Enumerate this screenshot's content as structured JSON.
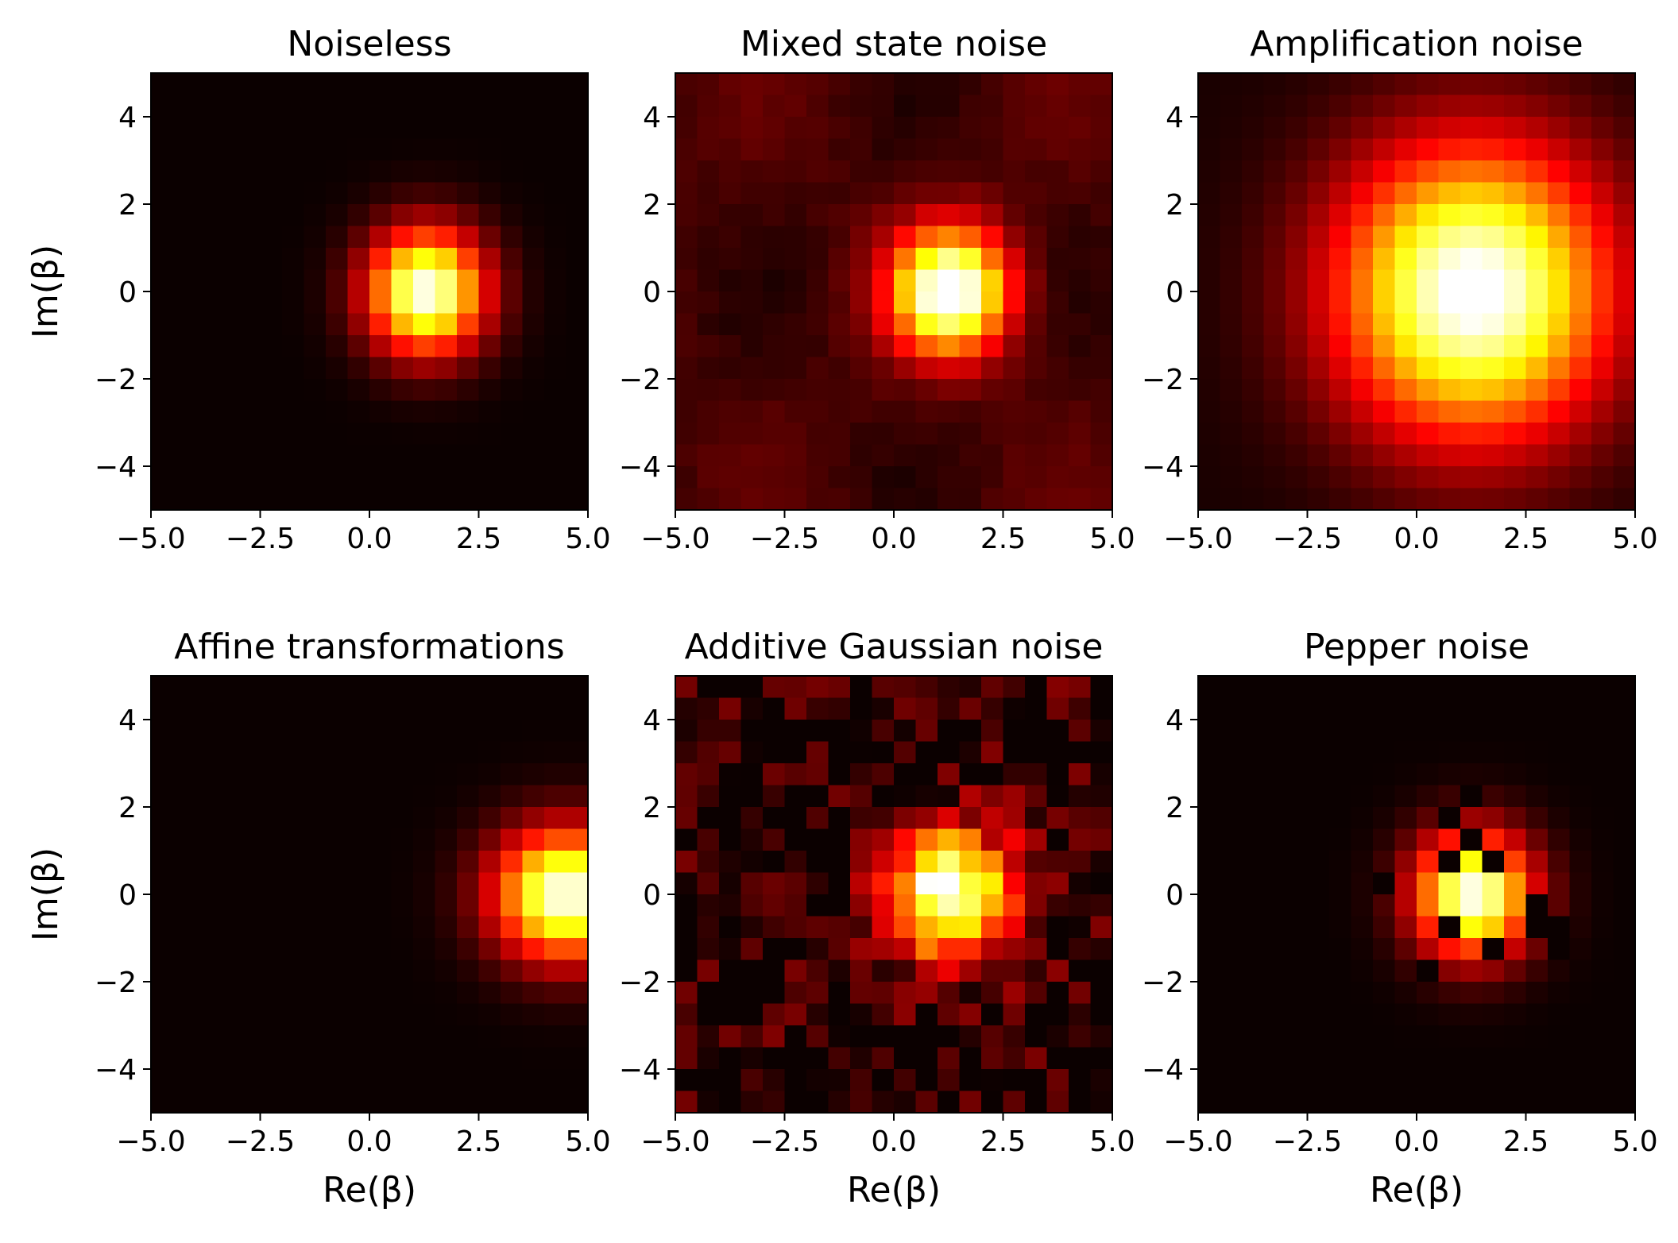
{
  "chart_data": [
    {
      "type": "heatmap",
      "title": "Noiseless",
      "xlabel": "",
      "ylabel": "Im(β)",
      "xlim": [
        -5,
        5
      ],
      "ylim": [
        -5,
        5
      ],
      "xticks": [
        "−5.0",
        "−2.5",
        "0.0",
        "2.5",
        "5.0"
      ],
      "yticks": [
        "−4",
        "−2",
        "0",
        "2",
        "4"
      ],
      "colormap": "hot",
      "grid_size": 20,
      "peak": [
        1.3,
        0
      ],
      "max_value": 1.0,
      "description": "single gaussian peak near (1.3, 0)"
    },
    {
      "type": "heatmap",
      "title": "Mixed state noise",
      "xlabel": "",
      "ylabel": "",
      "xlim": [
        -5,
        5
      ],
      "ylim": [
        -5,
        5
      ],
      "xticks": [
        "−5.0",
        "−2.5",
        "0.0",
        "2.5",
        "5.0"
      ],
      "yticks": [
        "−4",
        "−2",
        "0",
        "2",
        "4"
      ],
      "colormap": "hot",
      "grid_size": 20,
      "peak": [
        1.3,
        0
      ],
      "max_value": 1.0
    },
    {
      "type": "heatmap",
      "title": "Amplification noise",
      "xlabel": "",
      "ylabel": "",
      "xlim": [
        -5,
        5
      ],
      "ylim": [
        -5,
        5
      ],
      "xticks": [
        "−5.0",
        "−2.5",
        "0.0",
        "2.5",
        "5.0"
      ],
      "yticks": [
        "−4",
        "−2",
        "0",
        "2",
        "4"
      ],
      "colormap": "hot",
      "grid_size": 20,
      "peak": [
        1.3,
        0
      ],
      "max_value": 1.0
    },
    {
      "type": "heatmap",
      "title": "Affine transformations",
      "xlabel": "Re(β)",
      "ylabel": "Im(β)",
      "xlim": [
        -5,
        5
      ],
      "ylim": [
        -5,
        5
      ],
      "xticks": [
        "−5.0",
        "−2.5",
        "0.0",
        "2.5",
        "5.0"
      ],
      "yticks": [
        "−4",
        "−2",
        "0",
        "2",
        "4"
      ],
      "colormap": "hot",
      "grid_size": 20,
      "peak": [
        4.5,
        0
      ],
      "max_value": 1.0
    },
    {
      "type": "heatmap",
      "title": "Additive Gaussian noise",
      "xlabel": "Re(β)",
      "ylabel": "",
      "xlim": [
        -5,
        5
      ],
      "ylim": [
        -5,
        5
      ],
      "xticks": [
        "−5.0",
        "−2.5",
        "0.0",
        "2.5",
        "5.0"
      ],
      "yticks": [
        "−4",
        "−2",
        "0",
        "2",
        "4"
      ],
      "colormap": "hot",
      "grid_size": 20,
      "peak": [
        1.3,
        0
      ],
      "max_value": 1.0
    },
    {
      "type": "heatmap",
      "title": "Pepper noise",
      "xlabel": "Re(β)",
      "ylabel": "",
      "xlim": [
        -5,
        5
      ],
      "ylim": [
        -5,
        5
      ],
      "xticks": [
        "−5.0",
        "−2.5",
        "0.0",
        "2.5",
        "5.0"
      ],
      "yticks": [
        "−4",
        "−2",
        "0",
        "2",
        "4"
      ],
      "colormap": "hot",
      "grid_size": 20,
      "peak": [
        1.3,
        0
      ],
      "max_value": 1.0
    }
  ]
}
